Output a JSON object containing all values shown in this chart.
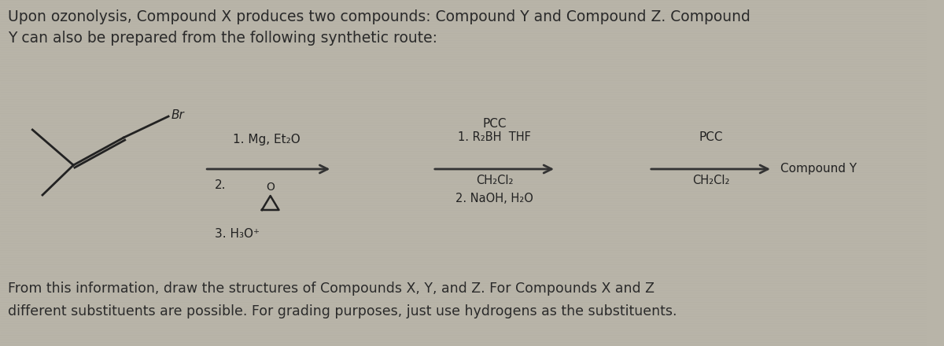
{
  "bg_color": "#b8b4a8",
  "title_text": "Upon ozonolysis, Compound X produces two compounds: Compound Y and Compound Z. Compound\nY can also be prepared from the following synthetic route:",
  "footer_text": "From this information, draw the structures of Compounds X, Y, and Z. For Compounds X and Z\ndifferent substituents are possible. For grading purposes, just use hydrogens as the substituents.",
  "title_fontsize": 13.5,
  "footer_fontsize": 12.5,
  "label_1mg": "1. Mg, Et₂O",
  "label_2": "2.",
  "label_3h2o": "3. H₃O⁺",
  "label_pcc1": "PCC",
  "label_ch2cl2_1": "CH₂Cl₂",
  "label_r2bh": "1. R₂BH  THF",
  "label_naoh": "2. NaOH, H₂O",
  "label_pcc2": "PCC",
  "label_ch2cl2_2": "CH₂Cl₂",
  "label_compoundY": "Compound Y",
  "label_br": "Br"
}
